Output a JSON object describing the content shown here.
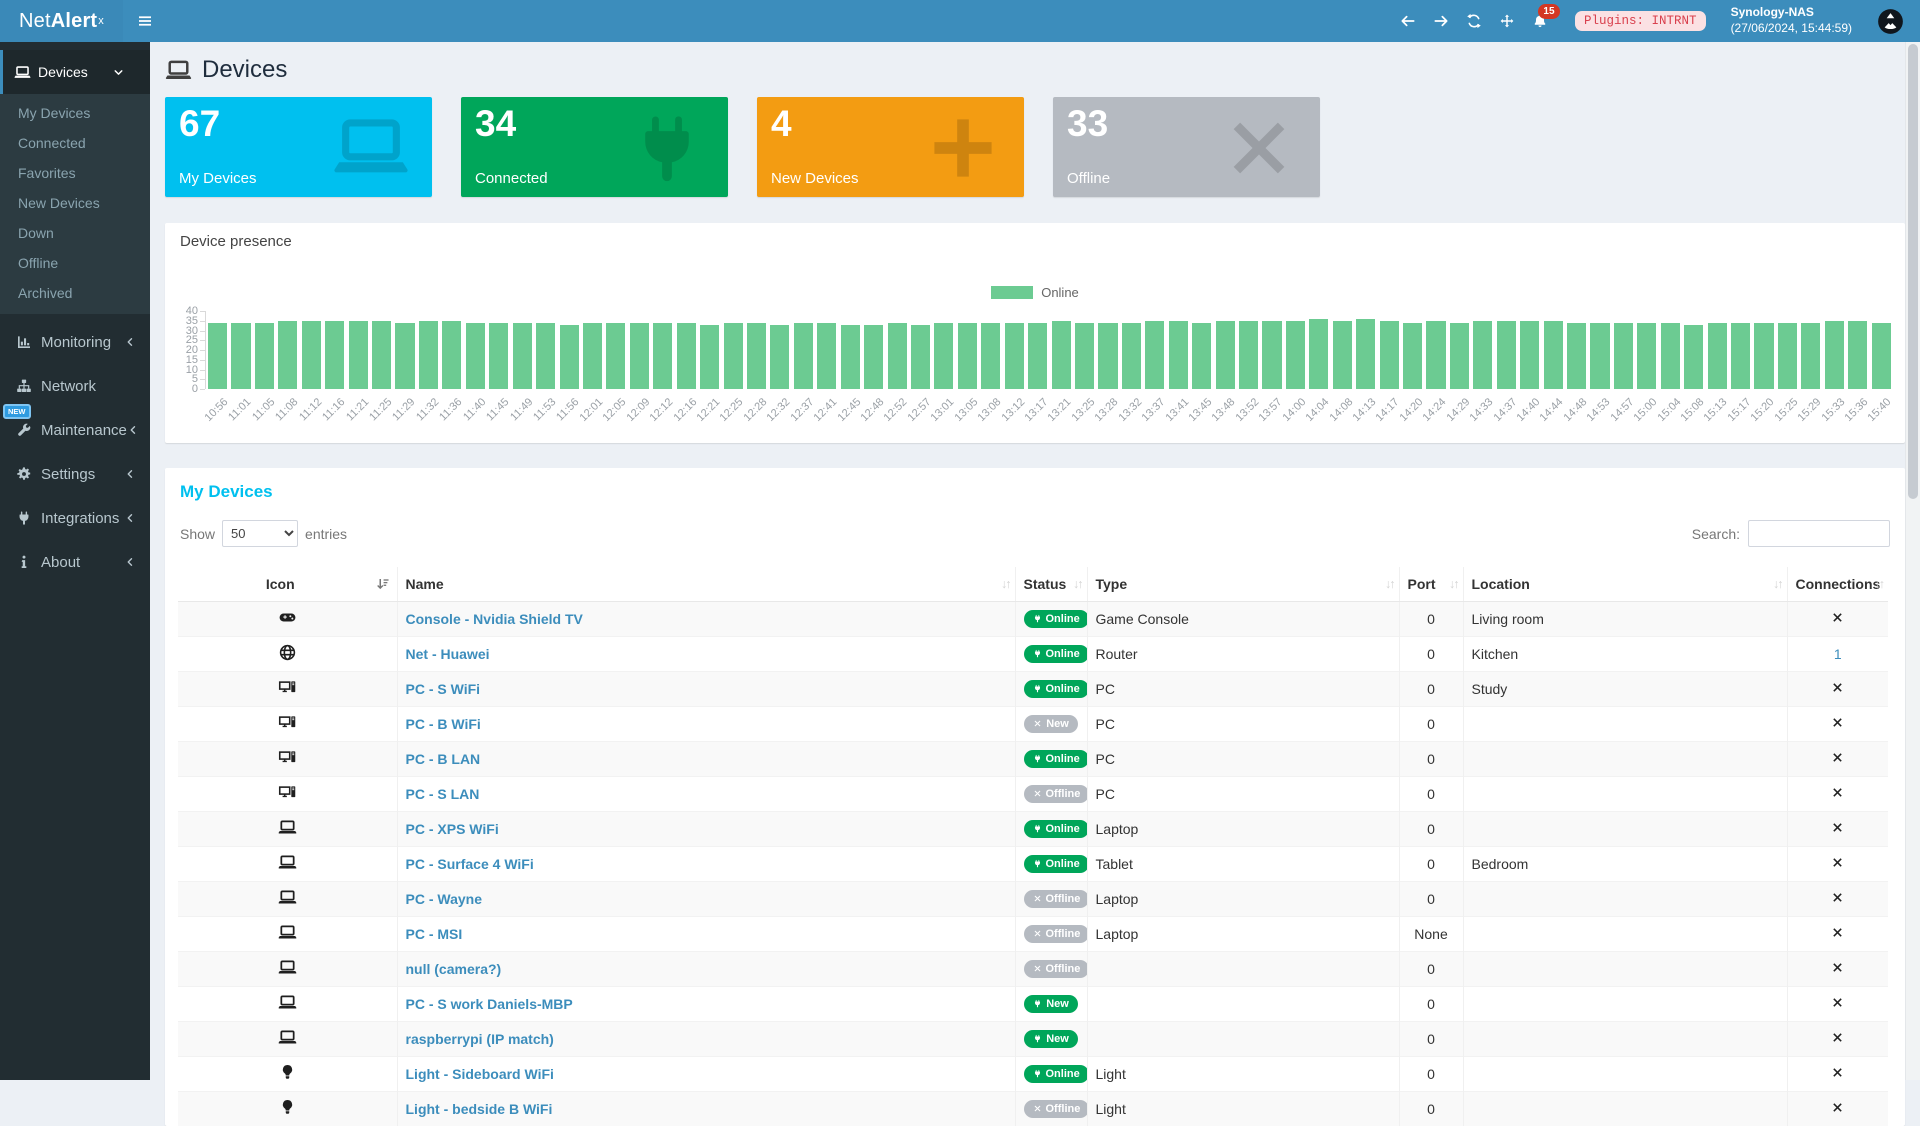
{
  "header": {
    "logo_net": "Net",
    "logo_alert": "Alert",
    "logo_sup": "x",
    "notif_count": "15",
    "plugins_label": "Plugins: INTRNT",
    "host": "Synology-NAS",
    "timestamp": "(27/06/2024, 15:44:59)"
  },
  "sidebar": {
    "devices_label": "Devices",
    "device_items": [
      "My Devices",
      "Connected",
      "Favorites",
      "New Devices",
      "Down",
      "Offline",
      "Archived"
    ],
    "sections": [
      {
        "label": "Monitoring",
        "icon": "chart",
        "chevron": true
      },
      {
        "label": "Network",
        "icon": "sitemap",
        "chevron": false
      },
      {
        "label": "Maintenance",
        "icon": "wrench",
        "chevron": true,
        "badge": "NEW"
      },
      {
        "label": "Settings",
        "icon": "gear",
        "chevron": true
      },
      {
        "label": "Integrations",
        "icon": "plug",
        "chevron": true
      },
      {
        "label": "About",
        "icon": "info",
        "chevron": true
      }
    ]
  },
  "page": {
    "title": "Devices"
  },
  "cards": [
    {
      "value": "67",
      "label": "My Devices",
      "color": "#00c0ef",
      "icon": "laptop"
    },
    {
      "value": "34",
      "label": "Connected",
      "color": "#00a65a",
      "icon": "plug"
    },
    {
      "value": "4",
      "label": "New Devices",
      "color": "#f39c12",
      "icon": "plus"
    },
    {
      "value": "33",
      "label": "Offline",
      "color": "#b5bac1",
      "icon": "times"
    }
  ],
  "presence": {
    "title": "Device presence",
    "legend": "Online"
  },
  "chart_data": {
    "type": "bar",
    "title": "Device presence",
    "legend_position": "top",
    "grid": false,
    "ylim": [
      0,
      40
    ],
    "ytick_step": 5,
    "x": [
      "10:56",
      "11:01",
      "11:05",
      "11:08",
      "11:12",
      "11:16",
      "11:21",
      "11:25",
      "11:29",
      "11:32",
      "11:36",
      "11:40",
      "11:45",
      "11:49",
      "11:53",
      "11:56",
      "12:01",
      "12:05",
      "12:09",
      "12:12",
      "12:16",
      "12:21",
      "12:25",
      "12:28",
      "12:32",
      "12:37",
      "12:41",
      "12:45",
      "12:48",
      "12:52",
      "12:57",
      "13:01",
      "13:05",
      "13:08",
      "13:12",
      "13:17",
      "13:21",
      "13:25",
      "13:28",
      "13:32",
      "13:37",
      "13:41",
      "13:45",
      "13:48",
      "13:52",
      "13:57",
      "14:00",
      "14:04",
      "14:08",
      "14:13",
      "14:17",
      "14:20",
      "14:24",
      "14:29",
      "14:33",
      "14:37",
      "14:40",
      "14:44",
      "14:48",
      "14:53",
      "14:57",
      "15:00",
      "15:04",
      "15:08",
      "15:13",
      "15:17",
      "15:20",
      "15:25",
      "15:29",
      "15:33",
      "15:36",
      "15:40"
    ],
    "series": [
      {
        "name": "Online",
        "color": "#6ccb92",
        "values": [
          34,
          34,
          34,
          35,
          35,
          35,
          35,
          35,
          34,
          35,
          35,
          34,
          34,
          34,
          34,
          33,
          34,
          34,
          34,
          34,
          34,
          33,
          34,
          34,
          33,
          34,
          34,
          33,
          33,
          34,
          33,
          34,
          34,
          34,
          34,
          34,
          35,
          34,
          34,
          34,
          35,
          35,
          34,
          35,
          35,
          35,
          35,
          36,
          35,
          36,
          35,
          34,
          35,
          34,
          35,
          35,
          35,
          35,
          34,
          34,
          34,
          34,
          34,
          33,
          34,
          34,
          34,
          34,
          34,
          35,
          35,
          34
        ]
      }
    ]
  },
  "table": {
    "title": "My Devices",
    "show_label": "Show",
    "entries_label": "entries",
    "length_value": "50",
    "length_options": [
      "50"
    ],
    "search_label": "Search:",
    "search_value": "",
    "columns": [
      {
        "label": "Icon",
        "sort": "amount-desc",
        "align": "center"
      },
      {
        "label": "Name",
        "sort": "both"
      },
      {
        "label": "Status",
        "sort": "both"
      },
      {
        "label": "Type",
        "sort": "both"
      },
      {
        "label": "Port",
        "sort": "both"
      },
      {
        "label": "Location",
        "sort": "both"
      },
      {
        "label": "Connections",
        "sort": "both"
      }
    ],
    "rows": [
      {
        "icon": "gamepad",
        "name": "Console - Nvidia Shield TV",
        "status": "Online",
        "variant": "online",
        "type": "Game Console",
        "port": "0",
        "location": "Living room",
        "connections": "X"
      },
      {
        "icon": "globe",
        "name": "Net - Huawei",
        "status": "Online",
        "variant": "online",
        "type": "Router",
        "port": "0",
        "location": "Kitchen",
        "connections": "1"
      },
      {
        "icon": "desktop-pc",
        "name": "PC - S WiFi",
        "status": "Online",
        "variant": "online",
        "type": "PC",
        "port": "0",
        "location": "Study",
        "connections": "X"
      },
      {
        "icon": "desktop-pc",
        "name": "PC - B WiFi",
        "status": "New",
        "variant": "new-offline",
        "type": "PC",
        "port": "0",
        "location": "",
        "connections": "X"
      },
      {
        "icon": "desktop-pc",
        "name": "PC - B LAN",
        "status": "Online",
        "variant": "online",
        "type": "PC",
        "port": "0",
        "location": "",
        "connections": "X"
      },
      {
        "icon": "desktop-pc",
        "name": "PC - S LAN",
        "status": "Offline",
        "variant": "offline",
        "type": "PC",
        "port": "0",
        "location": "",
        "connections": "X"
      },
      {
        "icon": "laptop",
        "name": "PC - XPS WiFi",
        "status": "Online",
        "variant": "online",
        "type": "Laptop",
        "port": "0",
        "location": "",
        "connections": "X"
      },
      {
        "icon": "laptop",
        "name": "PC - Surface 4 WiFi",
        "status": "Online",
        "variant": "online",
        "type": "Tablet",
        "port": "0",
        "location": "Bedroom",
        "connections": "X"
      },
      {
        "icon": "laptop",
        "name": "PC - Wayne",
        "status": "Offline",
        "variant": "offline",
        "type": "Laptop",
        "port": "0",
        "location": "",
        "connections": "X"
      },
      {
        "icon": "laptop",
        "name": "PC - MSI",
        "status": "Offline",
        "variant": "offline",
        "type": "Laptop",
        "port": "None",
        "location": "",
        "connections": "X"
      },
      {
        "icon": "laptop",
        "name": "null (camera?)",
        "status": "Offline",
        "variant": "offline",
        "type": "",
        "port": "0",
        "location": "",
        "connections": "X"
      },
      {
        "icon": "laptop",
        "name": "PC - S work Daniels-MBP",
        "status": "New",
        "variant": "new-online",
        "type": "",
        "port": "0",
        "location": "",
        "connections": "X"
      },
      {
        "icon": "laptop",
        "name": "raspberrypi (IP match)",
        "status": "New",
        "variant": "new-online",
        "type": "",
        "port": "0",
        "location": "",
        "connections": "X"
      },
      {
        "icon": "lightbulb",
        "name": "Light - Sideboard WiFi",
        "status": "Online",
        "variant": "online",
        "type": "Light",
        "port": "0",
        "location": "",
        "connections": "X"
      },
      {
        "icon": "lightbulb",
        "name": "Light - bedside B WiFi",
        "status": "Offline",
        "variant": "offline",
        "type": "Light",
        "port": "0",
        "location": "",
        "connections": "X"
      }
    ]
  }
}
